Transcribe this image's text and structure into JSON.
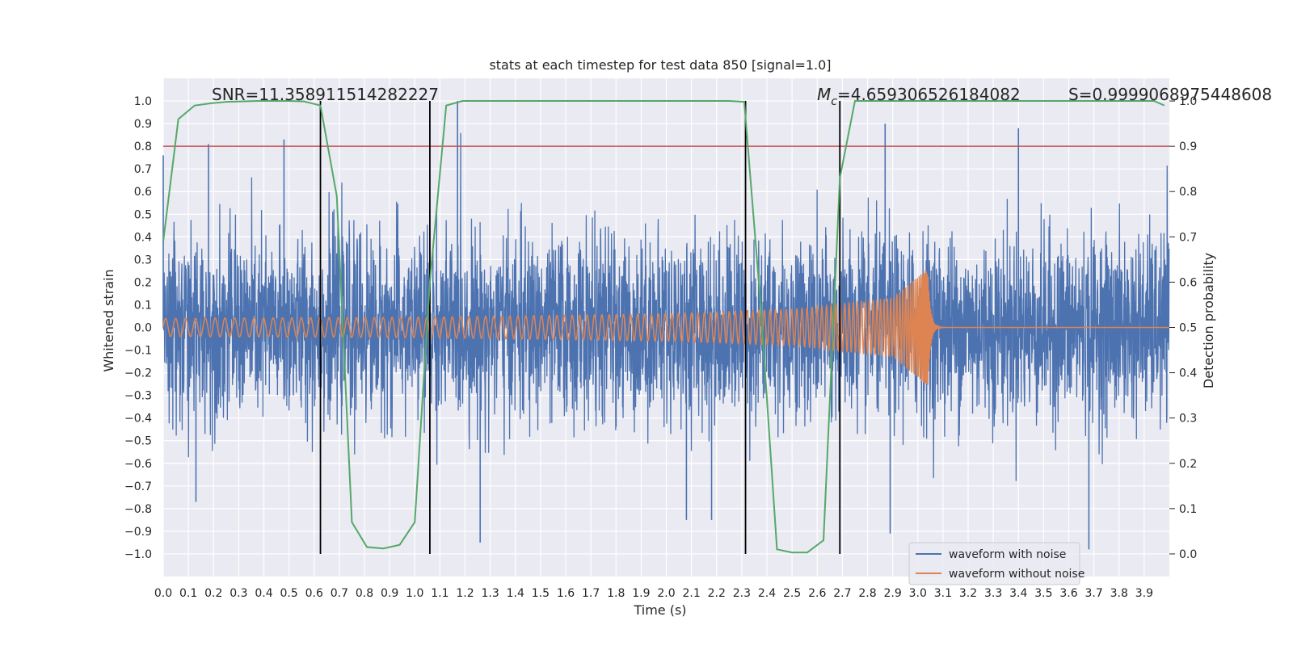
{
  "chart_data": {
    "type": "line",
    "title": "stats at each timestep for test data 850 [signal=1.0]",
    "xlabel": "Time (s)",
    "ylabel": "Whitened strain",
    "y2label": "Detection probability",
    "xlim": [
      0.0,
      4.0
    ],
    "ylim": [
      -1.1,
      1.1
    ],
    "y2lim": [
      -0.05,
      1.05
    ],
    "xticks": [
      "0.0",
      "0.1",
      "0.2",
      "0.3",
      "0.4",
      "0.5",
      "0.6",
      "0.7",
      "0.8",
      "0.9",
      "1.0",
      "1.1",
      "1.2",
      "1.3",
      "1.4",
      "1.5",
      "1.6",
      "1.7",
      "1.8",
      "1.9",
      "2.0",
      "2.1",
      "2.2",
      "2.3",
      "2.4",
      "2.5",
      "2.6",
      "2.7",
      "2.8",
      "2.9",
      "3.0",
      "3.1",
      "3.2",
      "3.3",
      "3.4",
      "3.5",
      "3.6",
      "3.7",
      "3.8",
      "3.9"
    ],
    "yticks": [
      "1.0",
      "0.9",
      "0.8",
      "0.7",
      "0.6",
      "0.5",
      "0.4",
      "0.3",
      "0.2",
      "0.1",
      "0.0",
      "−0.1",
      "−0.2",
      "−0.3",
      "−0.4",
      "−0.5",
      "−0.6",
      "−0.7",
      "−0.8",
      "−0.9",
      "−1.0"
    ],
    "y2ticks": [
      "1.0",
      "0.9",
      "0.8",
      "0.7",
      "0.6",
      "0.5",
      "0.4",
      "0.3",
      "0.2",
      "0.1",
      "0.0"
    ],
    "annotations": {
      "snr": "SNR=11.358911514282227",
      "mc_value": "=4.659306526184082",
      "mc_symbol": "M",
      "mc_subscript": "c",
      "s": "S=0.9999068975448608"
    },
    "threshold": 0.9,
    "vlines": [
      0.625,
      1.06,
      2.315,
      2.69
    ],
    "legend": {
      "position": "lower-right",
      "entries": [
        "waveform with noise",
        "waveform without noise"
      ]
    },
    "series": [
      {
        "name": "waveform with noise",
        "axis": "left",
        "color": "#4c72b0",
        "description": "noisy whitened strain, roughly within -1.0 to 1.0",
        "notable_peaks": [
          {
            "x": 0.0,
            "y": 0.76
          },
          {
            "x": 0.18,
            "y": 0.81
          },
          {
            "x": 0.48,
            "y": 0.83
          },
          {
            "x": 1.17,
            "y": 1.0
          },
          {
            "x": 2.87,
            "y": 0.9
          },
          {
            "x": 3.4,
            "y": 0.88
          },
          {
            "x": 0.13,
            "y": -0.77
          },
          {
            "x": 1.26,
            "y": -0.95
          },
          {
            "x": 2.08,
            "y": -0.85
          },
          {
            "x": 2.18,
            "y": -0.85
          },
          {
            "x": 2.89,
            "y": -0.91
          },
          {
            "x": 3.68,
            "y": -0.98
          }
        ]
      },
      {
        "name": "waveform without noise",
        "axis": "left",
        "color": "#dd8452",
        "description": "chirp signal growing in amplitude, merging near 3.04 s, then ringdown",
        "amplitude_points": [
          {
            "t": 0.0,
            "amp": 0.04
          },
          {
            "t": 1.0,
            "amp": 0.045
          },
          {
            "t": 2.0,
            "amp": 0.06
          },
          {
            "t": 2.5,
            "amp": 0.08
          },
          {
            "t": 2.9,
            "amp": 0.13
          },
          {
            "t": 3.04,
            "amp": 0.26
          }
        ],
        "merger_time": 3.04
      },
      {
        "name": "detection probability",
        "axis": "right",
        "color": "#55a868",
        "points": [
          [
            0.0,
            0.69
          ],
          [
            0.06,
            0.96
          ],
          [
            0.125,
            0.99
          ],
          [
            0.19,
            0.995
          ],
          [
            0.25,
            0.998
          ],
          [
            0.31,
            0.999
          ],
          [
            0.375,
            1.0
          ],
          [
            0.44,
            1.0
          ],
          [
            0.5,
            1.0
          ],
          [
            0.56,
            0.999
          ],
          [
            0.625,
            0.99
          ],
          [
            0.69,
            0.79
          ],
          [
            0.75,
            0.07
          ],
          [
            0.81,
            0.015
          ],
          [
            0.875,
            0.012
          ],
          [
            0.94,
            0.02
          ],
          [
            1.0,
            0.07
          ],
          [
            1.06,
            0.6
          ],
          [
            1.125,
            0.99
          ],
          [
            1.19,
            1.0
          ],
          [
            1.25,
            1.0
          ],
          [
            1.5,
            1.0
          ],
          [
            1.75,
            1.0
          ],
          [
            2.0,
            1.0
          ],
          [
            2.25,
            1.0
          ],
          [
            2.31,
            0.998
          ],
          [
            2.375,
            0.55
          ],
          [
            2.44,
            0.01
          ],
          [
            2.5,
            0.003
          ],
          [
            2.56,
            0.003
          ],
          [
            2.625,
            0.03
          ],
          [
            2.69,
            0.83
          ],
          [
            2.75,
            1.0
          ],
          [
            3.0,
            1.0
          ],
          [
            3.25,
            1.0
          ],
          [
            3.5,
            1.0
          ],
          [
            3.75,
            1.0
          ],
          [
            3.94,
            1.0
          ],
          [
            3.98,
            0.99
          ]
        ]
      }
    ],
    "colors": {
      "background": "#eaeaf2",
      "grid": "#ffffff",
      "threshold": "#c44e52",
      "vline": "#000000"
    }
  }
}
